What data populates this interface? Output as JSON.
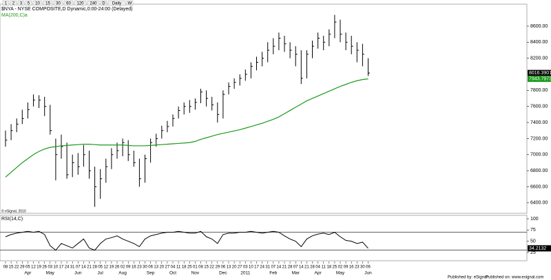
{
  "toolbar": {
    "intervals": [
      "1",
      "2",
      "3",
      "5",
      "10",
      "15",
      "30",
      "60",
      "120",
      "240",
      "D",
      "Daily",
      "W"
    ]
  },
  "chart_data": [
    {
      "type": "ohlc",
      "title": "$NYA - NYSE COMPOSITE,D Dynamic,0:00-24:00 (Delayed)",
      "copyright": "© eSignal, 2010",
      "categories": [
        "08",
        "15",
        "22",
        "29",
        "05",
        "12",
        "19",
        "26",
        "03",
        "10",
        "17",
        "24",
        "31",
        "07",
        "14",
        "21",
        "28",
        "05",
        "12",
        "19",
        "26",
        "02",
        "09",
        "16",
        "23",
        "30",
        "06",
        "13",
        "20",
        "27",
        "04",
        "11",
        "18",
        "25",
        "01",
        "08",
        "15",
        "22",
        "29",
        "06",
        "13",
        "20",
        "27",
        "03",
        "10",
        "17",
        "24",
        "31",
        "07",
        "14",
        "21",
        "28",
        "07",
        "14",
        "21",
        "28",
        "04",
        "11",
        "18",
        "25",
        "02",
        "09",
        "16",
        "23",
        "30",
        "06"
      ],
      "months": [
        null,
        null,
        null,
        null,
        "Apr",
        null,
        null,
        null,
        "May",
        null,
        null,
        null,
        null,
        "Jun",
        null,
        null,
        null,
        "Jul",
        null,
        null,
        null,
        "Aug",
        null,
        null,
        null,
        null,
        "Sep",
        null,
        null,
        null,
        "Oct",
        null,
        null,
        null,
        "Nov",
        null,
        null,
        null,
        null,
        "Dec",
        null,
        null,
        null,
        "2011",
        null,
        null,
        null,
        null,
        "Feb",
        null,
        null,
        null,
        "Mar",
        null,
        null,
        null,
        "Apr",
        null,
        null,
        null,
        "May",
        null,
        null,
        null,
        null,
        "Jun"
      ],
      "series": [
        {
          "color": "#000000",
          "high": [
            7300,
            7380,
            7450,
            7560,
            7650,
            7750,
            7740,
            7720,
            7620,
            7200,
            7250,
            7150,
            7000,
            7020,
            7120,
            7050,
            6850,
            6820,
            6950,
            7080,
            7150,
            7200,
            7180,
            7050,
            6950,
            7000,
            7200,
            7260,
            7360,
            7420,
            7500,
            7600,
            7650,
            7680,
            7700,
            7820,
            7800,
            7720,
            7650,
            7800,
            7900,
            7950,
            8000,
            8060,
            8150,
            8220,
            8280,
            8400,
            8450,
            8520,
            8480,
            8400,
            8350,
            8300,
            8300,
            8420,
            8520,
            8480,
            8560,
            8740,
            8680,
            8520,
            8480,
            8400,
            8380,
            8200
          ],
          "low": [
            7100,
            7180,
            7280,
            7380,
            7450,
            7600,
            7580,
            7480,
            7250,
            6680,
            6950,
            6700,
            6720,
            6750,
            6850,
            6700,
            6350,
            6450,
            6650,
            6820,
            6950,
            6980,
            6920,
            6850,
            6600,
            6650,
            6900,
            7100,
            7200,
            7280,
            7350,
            7450,
            7500,
            7520,
            7560,
            7640,
            7600,
            7550,
            7400,
            7450,
            7750,
            7820,
            7860,
            7920,
            7950,
            8050,
            8100,
            8150,
            8250,
            8300,
            8280,
            8200,
            8100,
            7880,
            7950,
            8200,
            8320,
            8300,
            8350,
            8450,
            8400,
            8300,
            8250,
            8150,
            8100,
            7980
          ],
          "close": [
            7180,
            7300,
            7380,
            7450,
            7560,
            7680,
            7680,
            7600,
            7300,
            7000,
            7100,
            6750,
            6900,
            6850,
            7000,
            6800,
            6600,
            6700,
            6850,
            7000,
            7050,
            7150,
            7000,
            6900,
            6700,
            6950,
            7150,
            7200,
            7300,
            7350,
            7450,
            7550,
            7600,
            7600,
            7650,
            7780,
            7700,
            7620,
            7500,
            7750,
            7850,
            7900,
            7950,
            8000,
            8100,
            8150,
            8200,
            8300,
            8350,
            8450,
            8380,
            8300,
            8250,
            7950,
            8250,
            8350,
            8450,
            8400,
            8500,
            8650,
            8500,
            8400,
            8350,
            8300,
            8250,
            8016.3901
          ]
        },
        {
          "name": "MA(200,C)a",
          "color": "#1a9a1a",
          "values": [
            6720,
            6780,
            6840,
            6900,
            6950,
            7000,
            7040,
            7070,
            7090,
            7100,
            7110,
            7115,
            7120,
            7125,
            7130,
            7130,
            7125,
            7120,
            7120,
            7120,
            7120,
            7120,
            7115,
            7110,
            7110,
            7110,
            7115,
            7120,
            7125,
            7130,
            7135,
            7140,
            7145,
            7150,
            7165,
            7190,
            7210,
            7230,
            7250,
            7265,
            7280,
            7295,
            7310,
            7330,
            7350,
            7370,
            7390,
            7415,
            7440,
            7470,
            7510,
            7550,
            7590,
            7630,
            7670,
            7700,
            7730,
            7760,
            7790,
            7820,
            7850,
            7875,
            7900,
            7920,
            7935,
            7943.7973
          ]
        }
      ],
      "ylim": [
        6270,
        8874
      ],
      "yticks": [
        {
          "value": 6400,
          "label": "6400.00"
        },
        {
          "value": 6600,
          "label": "6600.00"
        },
        {
          "value": 6800,
          "label": "6800.00"
        },
        {
          "value": 7000,
          "label": "7000.00"
        },
        {
          "value": 7200,
          "label": "7200.00"
        },
        {
          "value": 7400,
          "label": "7400.00"
        },
        {
          "value": 7600,
          "label": "7600.00"
        },
        {
          "value": 7800,
          "label": "7800.00"
        },
        {
          "value": 8200,
          "label": "8200.00"
        },
        {
          "value": 8400,
          "label": "8400.00"
        },
        {
          "value": 8600,
          "label": "8600.00"
        }
      ]
    },
    {
      "type": "line",
      "series": [
        {
          "name": "RSI(14,C)",
          "color": "#000000",
          "values": [
            60,
            65,
            68,
            70,
            72,
            70,
            72,
            65,
            40,
            30,
            45,
            40,
            35,
            45,
            55,
            35,
            30,
            45,
            55,
            58,
            62,
            55,
            50,
            45,
            38,
            55,
            62,
            65,
            68,
            70,
            70,
            72,
            70,
            68,
            68,
            72,
            60,
            55,
            45,
            65,
            68,
            68,
            70,
            70,
            72,
            70,
            68,
            70,
            72,
            70,
            62,
            55,
            50,
            38,
            55,
            62,
            66,
            68,
            65,
            70,
            60,
            52,
            50,
            45,
            48,
            34.2132
          ]
        }
      ],
      "ylim": [
        6.6,
        107.7
      ],
      "yticks": [
        25,
        50,
        75,
        100
      ],
      "bands": [
        30,
        70
      ]
    }
  ],
  "footer": {
    "published_by": "Published by: eSignal",
    "published_on": "Published on: www.esignal.com"
  }
}
